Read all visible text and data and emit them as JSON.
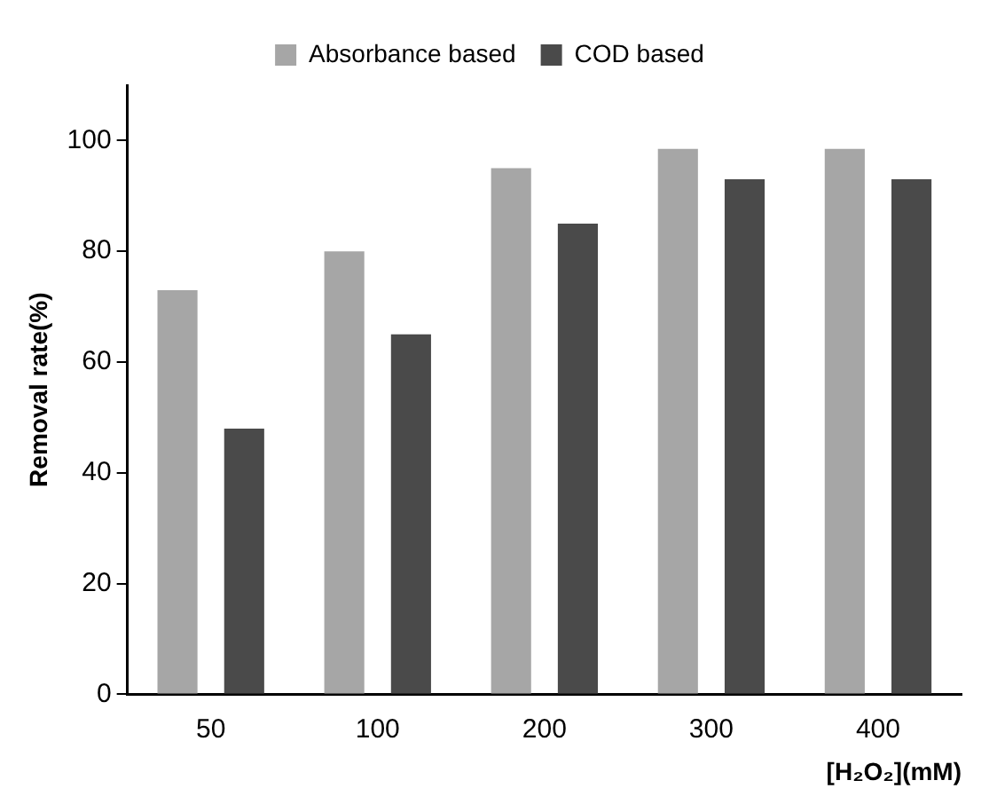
{
  "chart_data": {
    "type": "bar",
    "xlabel": "[H₂O₂](mM)",
    "ylabel": "Removal rate(%)",
    "categories": [
      "50",
      "100",
      "200",
      "300",
      "400"
    ],
    "series": [
      {
        "name": "Absorbance based",
        "color": "#a6a6a6",
        "values": [
          73,
          80,
          95,
          98.5,
          98.5
        ]
      },
      {
        "name": "COD based",
        "color": "#4a4a4a",
        "values": [
          48,
          65,
          85,
          93,
          93
        ]
      }
    ],
    "ylim": [
      0,
      110
    ],
    "yticks": [
      0,
      20,
      40,
      60,
      80,
      100
    ],
    "grid": false,
    "legend": "top"
  }
}
